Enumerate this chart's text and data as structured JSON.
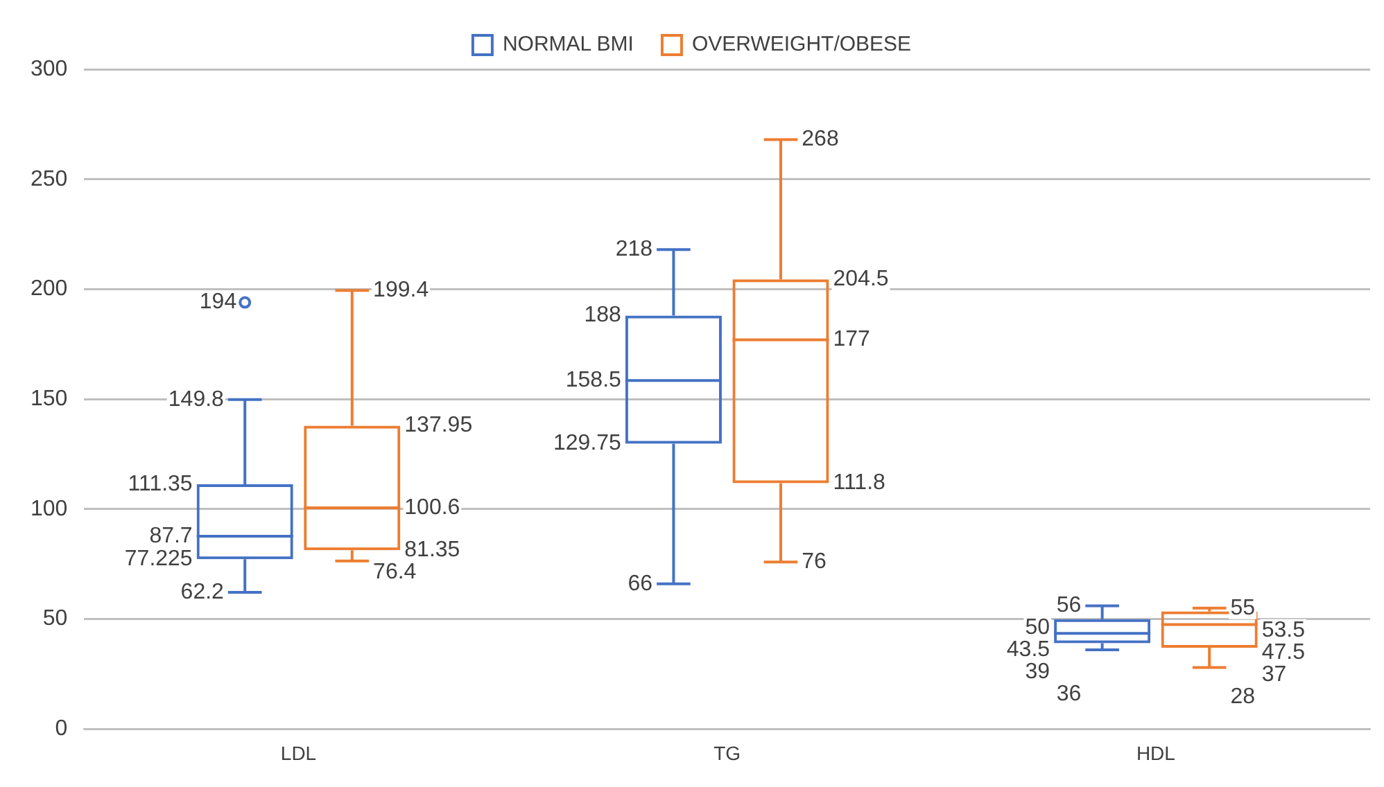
{
  "chart_data": {
    "type": "box",
    "categories": [
      "LDL",
      "TG",
      "HDL"
    ],
    "series": [
      {
        "name": "NORMAL BMI",
        "color": "#4472c4",
        "boxes": [
          {
            "low": 62.2,
            "q1": 77.225,
            "median": 87.7,
            "q3": 111.35,
            "high": 149.8,
            "outliers": [
              194
            ]
          },
          {
            "low": 66,
            "q1": 129.75,
            "median": 158.5,
            "q3": 188,
            "high": 218
          },
          {
            "low": 36,
            "q1": 39,
            "median": 43.5,
            "q3": 50,
            "high": 56
          }
        ],
        "value_labels": [
          [
            "62.2",
            "77.225",
            "87.7",
            "111.35",
            "149.8",
            "194"
          ],
          [
            "66",
            "129.75",
            "158.5",
            "188",
            "218"
          ],
          [
            "36",
            "39",
            "43.5",
            "50",
            "56"
          ]
        ]
      },
      {
        "name": "OVERWEIGHT/OBESE",
        "color": "#ed7d31",
        "boxes": [
          {
            "low": 76.4,
            "q1": 81.35,
            "median": 100.6,
            "q3": 137.95,
            "high": 199.4
          },
          {
            "low": 76,
            "q1": 111.8,
            "median": 177,
            "q3": 204.5,
            "high": 268
          },
          {
            "low": 28,
            "q1": 37,
            "median": 47.5,
            "q3": 53.5,
            "high": 55
          }
        ],
        "value_labels": [
          [
            "76.4",
            "81.35",
            "100.6",
            "137.95",
            "199.4"
          ],
          [
            "76",
            "111.8",
            "177",
            "204.5",
            "268"
          ],
          [
            "28",
            "37",
            "47.5",
            "53.5",
            "55"
          ]
        ]
      }
    ],
    "ylim": [
      0,
      300
    ],
    "yticks": [
      0,
      50,
      100,
      150,
      200,
      250,
      300
    ],
    "grid": "y",
    "legend": "top"
  }
}
